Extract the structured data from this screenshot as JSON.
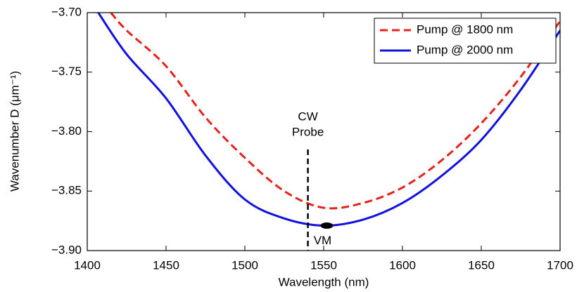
{
  "chart_data": {
    "type": "line",
    "xlabel": "Wavelength (nm)",
    "ylabel": "Wavenumber D (μm⁻¹)",
    "xlim": [
      1400,
      1700
    ],
    "xticks": [
      1400,
      1450,
      1500,
      1550,
      1600,
      1650,
      1700
    ],
    "ylim": [
      -3.9,
      -3.7
    ],
    "yticks": [
      {
        "value": -3.9,
        "label": "−3.90"
      },
      {
        "value": -3.85,
        "label": "−3.85"
      },
      {
        "value": -3.8,
        "label": "−3.80"
      },
      {
        "value": -3.75,
        "label": "−3.75"
      },
      {
        "value": -3.7,
        "label": "−3.70"
      }
    ],
    "legend": "upper right",
    "series": [
      {
        "name": "Pump @ 1800 nm",
        "color": "#e8201c",
        "dash": true,
        "x": [
          1415,
          1425,
          1450,
          1475,
          1500,
          1525,
          1550,
          1575,
          1600,
          1625,
          1650,
          1675,
          1700
        ],
        "y": [
          -3.7,
          -3.715,
          -3.745,
          -3.788,
          -3.822,
          -3.85,
          -3.864,
          -3.86,
          -3.847,
          -3.824,
          -3.793,
          -3.754,
          -3.707
        ]
      },
      {
        "name": "Pump @ 2000 nm",
        "color": "#1010e0",
        "dash": false,
        "x": [
          1407,
          1425,
          1450,
          1475,
          1500,
          1525,
          1550,
          1575,
          1600,
          1625,
          1650,
          1675,
          1700
        ],
        "y": [
          -3.7,
          -3.735,
          -3.772,
          -3.82,
          -3.857,
          -3.873,
          -3.879,
          -3.874,
          -3.86,
          -3.837,
          -3.807,
          -3.765,
          -3.715
        ]
      }
    ],
    "probe": {
      "text": [
        "CW",
        "Probe"
      ],
      "x": 1540,
      "ylim": [
        -3.815,
        -3.9
      ]
    },
    "marker": {
      "text": "VM",
      "x": 1552,
      "y": -3.879
    }
  }
}
